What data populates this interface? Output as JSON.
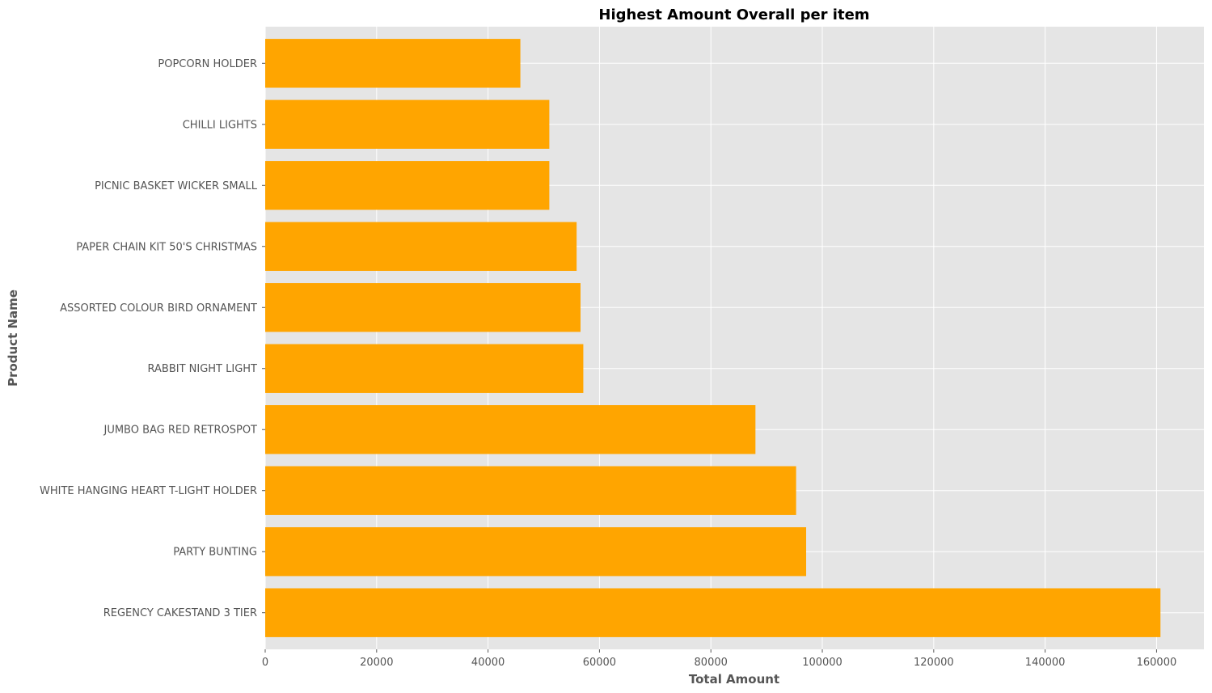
{
  "chart_data": {
    "type": "bar",
    "orientation": "horizontal",
    "title": "Highest Amount Overall per item",
    "xlabel": "Total Amount",
    "ylabel": "Product Name",
    "xlim": [
      0,
      168500
    ],
    "xticks": [
      0,
      20000,
      40000,
      60000,
      80000,
      100000,
      120000,
      140000,
      160000
    ],
    "xtick_labels": [
      "0",
      "20000",
      "40000",
      "60000",
      "80000",
      "100000",
      "120000",
      "140000",
      "160000"
    ],
    "categories": [
      "REGENCY CAKESTAND 3 TIER",
      "PARTY BUNTING",
      "WHITE HANGING HEART T-LIGHT HOLDER",
      "JUMBO BAG RED RETROSPOT",
      "RABBIT NIGHT LIGHT",
      "ASSORTED COLOUR BIRD ORNAMENT",
      "PAPER CHAIN KIT 50'S CHRISTMAS ",
      "PICNIC BASKET WICKER SMALL",
      "CHILLI LIGHTS",
      "POPCORN HOLDER"
    ],
    "values": [
      160700,
      97100,
      95300,
      88000,
      57100,
      56600,
      55900,
      51000,
      51000,
      45800
    ],
    "grid": true,
    "legend": "none",
    "colors": {
      "bar": "#FFA500",
      "background": "#E5E5E5",
      "grid": "#FFFFFF",
      "text": "#555555",
      "title": "#000000"
    }
  }
}
